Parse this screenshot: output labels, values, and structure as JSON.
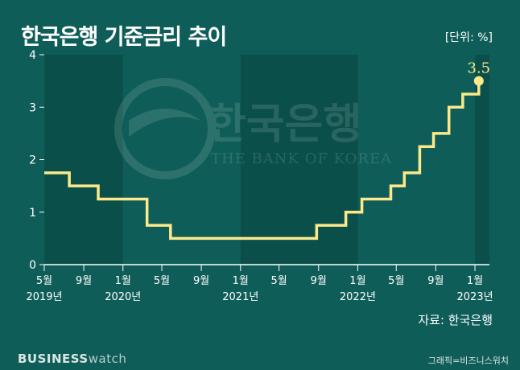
{
  "title": "한국은행 기준금리 추이",
  "unit": "[단위: %]",
  "source": "자료: 한국은행",
  "footer": {
    "brand_bold": "BUSINESS",
    "brand_light": "watch",
    "credit": "그래픽=비즈니스워치"
  },
  "watermark": {
    "korean": "한국은행",
    "english": "THE BANK OF KOREA"
  },
  "chart_data": {
    "type": "line",
    "step": true,
    "title": "한국은행 기준금리 추이",
    "ylabel": "",
    "xlabel": "",
    "ylim": [
      0,
      4
    ],
    "xlim": [
      "2019-05-01",
      "2023-02-15"
    ],
    "yticks": [
      0,
      1,
      2,
      3,
      4
    ],
    "grid": false,
    "month_ticks": [
      {
        "date": "2019-05-01",
        "label": "5월"
      },
      {
        "date": "2019-09-01",
        "label": "9월"
      },
      {
        "date": "2020-01-01",
        "label": "1월"
      },
      {
        "date": "2020-05-01",
        "label": "5월"
      },
      {
        "date": "2020-09-01",
        "label": "9월"
      },
      {
        "date": "2021-01-01",
        "label": "1월"
      },
      {
        "date": "2021-05-01",
        "label": "5월"
      },
      {
        "date": "2021-09-01",
        "label": "9월"
      },
      {
        "date": "2022-01-01",
        "label": "1월"
      },
      {
        "date": "2022-05-01",
        "label": "5월"
      },
      {
        "date": "2022-09-01",
        "label": "9월"
      },
      {
        "date": "2023-01-01",
        "label": "1월"
      }
    ],
    "year_labels": [
      {
        "date": "2019-05-01",
        "label": "2019년"
      },
      {
        "date": "2020-01-01",
        "label": "2020년"
      },
      {
        "date": "2021-01-01",
        "label": "2021년"
      },
      {
        "date": "2022-01-01",
        "label": "2022년"
      },
      {
        "date": "2023-01-01",
        "label": "2023년"
      }
    ],
    "year_bands": [
      {
        "start": "2019-05-01",
        "end": "2020-01-01",
        "shade": "dark"
      },
      {
        "start": "2020-01-01",
        "end": "2021-01-01",
        "shade": "light"
      },
      {
        "start": "2021-01-01",
        "end": "2022-01-01",
        "shade": "dark"
      },
      {
        "start": "2022-01-01",
        "end": "2023-01-01",
        "shade": "light"
      },
      {
        "start": "2023-01-01",
        "end": "2023-02-15",
        "shade": "dark"
      }
    ],
    "series": [
      {
        "color": "#fbe98a",
        "points": [
          {
            "x": "2019-05-01",
            "y": 1.75
          },
          {
            "x": "2019-07-18",
            "y": 1.5
          },
          {
            "x": "2019-10-16",
            "y": 1.25
          },
          {
            "x": "2020-03-16",
            "y": 0.75
          },
          {
            "x": "2020-05-28",
            "y": 0.5
          },
          {
            "x": "2021-08-26",
            "y": 0.75
          },
          {
            "x": "2021-11-25",
            "y": 1.0
          },
          {
            "x": "2022-01-14",
            "y": 1.25
          },
          {
            "x": "2022-04-14",
            "y": 1.5
          },
          {
            "x": "2022-05-26",
            "y": 1.75
          },
          {
            "x": "2022-07-13",
            "y": 2.25
          },
          {
            "x": "2022-08-25",
            "y": 2.5
          },
          {
            "x": "2022-10-12",
            "y": 3.0
          },
          {
            "x": "2022-11-24",
            "y": 3.25
          },
          {
            "x": "2023-01-13",
            "y": 3.5
          }
        ],
        "end_label": "3.5"
      }
    ],
    "colors": {
      "background": "#0f5d58",
      "band_dark": "#0b4f4a",
      "band_light": "#0f5d58",
      "line": "#fbe98a",
      "axis": "#ffffff"
    }
  }
}
